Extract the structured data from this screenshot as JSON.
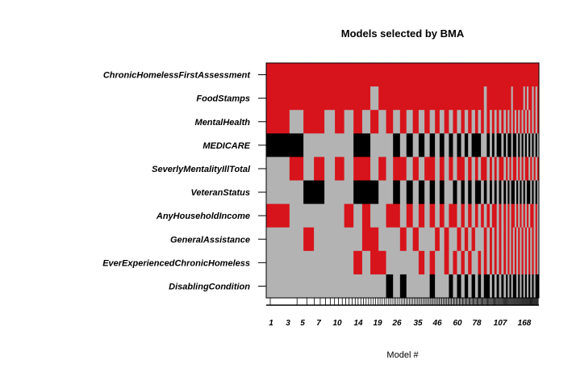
{
  "chart_data": {
    "type": "heatmap",
    "title": "Models selected by BMA",
    "xlabel": "Model #",
    "ylabel": "",
    "x_tick_labels": [
      "1",
      "3",
      "5",
      "7",
      "10",
      "14",
      "19",
      "26",
      "35",
      "46",
      "60",
      "78",
      "107",
      "168"
    ],
    "variables": [
      "ChronicHomelessFirstAssessment",
      "FoodStamps",
      "MentalHealth",
      "MEDICARE",
      "SeverlyMentalityIllTotal",
      "VeteranStatus",
      "AnyHouseholdIncome",
      "GeneralAssistance",
      "EverExperiencedChronicHomeless",
      "DisablingCondition"
    ],
    "legend_meaning": {
      "red": "included, positive coefficient",
      "black": "included, negative coefficient",
      "gray": "not included"
    },
    "colors": {
      "positive": "#d7141b",
      "negative": "#000000",
      "excluded": "#b3b3b3",
      "axis": "#000000"
    },
    "model_widths": [
      0.059,
      0.0354,
      0.0266,
      0.0266,
      0.0266,
      0.0236,
      0.0236,
      0.0221,
      0.0207,
      0.0207,
      0.0192,
      0.0177,
      0.0177,
      0.0162,
      0.0162,
      0.0148,
      0.0148,
      0.0133,
      0.0133,
      0.0118,
      0.0118,
      0.0118,
      0.0103,
      0.0103,
      0.0103,
      0.0089,
      0.0089,
      0.0089,
      0.0089,
      0.0074,
      0.0074,
      0.0074,
      0.0074,
      0.0074,
      0.0059,
      0.0059,
      0.0059,
      0.0059,
      0.0059,
      0.0059,
      0.0059,
      0.0044,
      0.0044,
      0.0044,
      0.0044,
      0.0044,
      0.0044,
      0.0044,
      0.0044,
      0.0044,
      0.0044,
      0.0044,
      0.0044,
      0.0044,
      0.0044,
      0.0044,
      0.0044,
      0.0044,
      0.0044,
      0.0044
    ],
    "model_patterns": {
      "ChronicHomelessFirstAssessment": "rrrrrrrrrrrrrrrrrrrrrrrrrrrrrrrrrrrrrrrrrrrrrrrrrrrrrrrrrrrr",
      "FoodStamps": "rrrrrrrrrgrrrrrrrrrrrrrrrrrrrrrrgrrrrrrrrrrrgrrrrrrgrgrrgrgr",
      "MentalHealth": "rgrrgrgrgrgrgrgrgrgrgrgrgrgrgrgrgrgrgrgrgrgrgrgrgrgrgrgrgrgr",
      "MEDICARE": "bbgggggbbgggbgbgbgbgbgbgbgbgbbbggbgbgbbgbgbbgbbgbgbgbgbgbgbg",
      "SeverlyMentalityIllTotal": "grgrgrgrrgrgrrgrgrrgrgrgrrgrgrgrrgrgrgrrgrgrgrrgrgrgrrgrgrgr",
      "VeteranStatus": "ggbbgggbbbggbgbgbgbgbggbgbgbgbbgbgbgbgbgbgbgbbgbgbgbgbbgbgbg",
      "AnyHouseholdIncome": "rgggggrgrggrrgrgrgrgrgrrgrgrgrgrgrgrrgrgrgrgrrgrgrgrgrgrrgrg",
      "GeneralAssistance": "ggrgggggrrgggrgrgggrgrggrgrgrgggrgrgrgrgrgrgrgrgrgrgrgrgrgrg",
      "EverExperiencedChronicHomeless": "gggggggrgrrgggggrgrggrgrgrgrggrgrgrgrgrgrgrgrgrgrgrgrgrgrgrg",
      "DisablingCondition": "gggggggggggbgbggggbgggbgbgbgbgbgbbgbgbgbgbgbgbbgbgbgbgbgbgbb"
    }
  }
}
